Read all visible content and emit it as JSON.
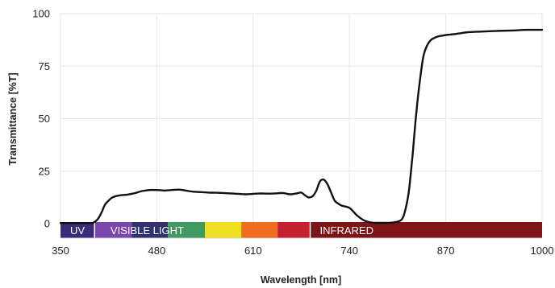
{
  "chart_data": {
    "type": "line",
    "title": "",
    "xlabel": "Wavelength [nm]",
    "ylabel": "Transmittance [%T]",
    "xlim": [
      350,
      1000
    ],
    "ylim": [
      0,
      100
    ],
    "x_ticks": [
      "350",
      "480",
      "610",
      "740",
      "870",
      "1000"
    ],
    "y_ticks": [
      "0",
      "25",
      "50",
      "75",
      "100"
    ],
    "grid": true,
    "series": [
      {
        "color": "#111111",
        "x": [
          350,
          390,
          395,
          400,
          405,
          410,
          415,
          420,
          430,
          440,
          450,
          460,
          470,
          480,
          490,
          500,
          510,
          520,
          530,
          540,
          550,
          560,
          570,
          580,
          590,
          600,
          610,
          620,
          630,
          640,
          650,
          660,
          670,
          675,
          680,
          685,
          690,
          695,
          700,
          705,
          710,
          715,
          720,
          725,
          730,
          740,
          750,
          760,
          770,
          780,
          790,
          800,
          810,
          815,
          820,
          825,
          830,
          835,
          840,
          845,
          850,
          855,
          860,
          870,
          880,
          890,
          900,
          920,
          940,
          960,
          980,
          1000
        ],
        "y": [
          0.3,
          0.3,
          0.6,
          2,
          5,
          9,
          11,
          12.5,
          13.5,
          13.8,
          14.5,
          15.5,
          16,
          16,
          15.8,
          16,
          16.2,
          15.7,
          15.2,
          15,
          14.8,
          14.7,
          14.6,
          14.4,
          14.2,
          14,
          14.2,
          14.4,
          14.3,
          14.4,
          14.6,
          14,
          14.5,
          14.8,
          13.5,
          12.5,
          13,
          15.5,
          20,
          21,
          19,
          15,
          11,
          9.5,
          8.5,
          7.5,
          4,
          1.5,
          0.5,
          0.4,
          0.4,
          0.6,
          1.8,
          6,
          15,
          32,
          52,
          68,
          80,
          85,
          87.5,
          88.5,
          89.2,
          89.8,
          90.2,
          90.7,
          91.2,
          91.5,
          91.8,
          92,
          92.3,
          92.3
        ]
      }
    ],
    "bands": [
      {
        "label": "UV",
        "from": 350,
        "to": 396,
        "color": "#3d2a7a"
      },
      {
        "label": "",
        "from": 396,
        "to": 446,
        "color": "#7b46ad"
      },
      {
        "label": "",
        "from": 446,
        "to": 495,
        "color": "#33306f"
      },
      {
        "label": "",
        "from": 495,
        "to": 545,
        "color": "#3f9a63"
      },
      {
        "label": "",
        "from": 545,
        "to": 594,
        "color": "#f1de20"
      },
      {
        "label": "",
        "from": 594,
        "to": 643,
        "color": "#ef6d21"
      },
      {
        "label": "",
        "from": 643,
        "to": 687,
        "color": "#c52130"
      },
      {
        "label": "INFRARED",
        "from": 687,
        "to": 1000,
        "color": "#7d1517"
      }
    ],
    "band_overlay_label": "VISIBLE LIGHT",
    "band_overlay_at": 400
  }
}
